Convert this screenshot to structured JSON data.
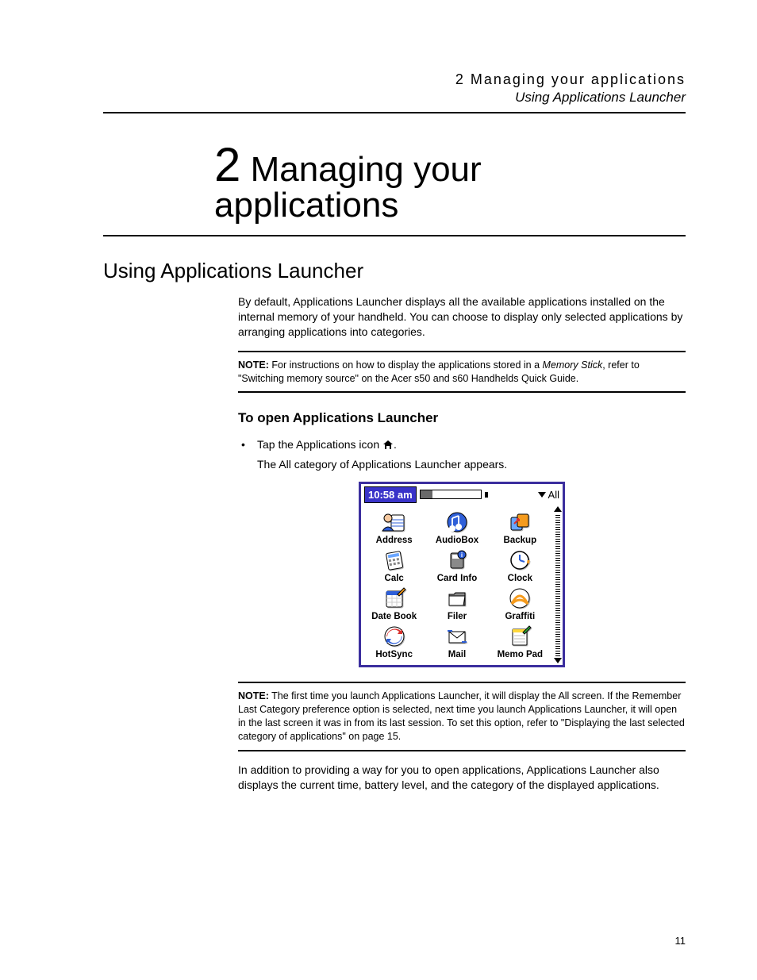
{
  "header": {
    "chapter_line": "2  Managing your applications",
    "section_line": "Using Applications Launcher"
  },
  "title": {
    "number": "2",
    "line1": " Managing your",
    "line2": "applications"
  },
  "section_heading": "Using Applications Launcher",
  "intro_para": "By default, Applications Launcher displays all the available applications installed on the internal memory of your handheld. You can choose to display only selected applications by arranging applications into categories.",
  "note1": {
    "label": "NOTE:",
    "before_italic": "   For instructions on how to display the applications stored in a ",
    "italic": "Memory Stick",
    "after_italic": ", refer to \"Switching memory source\" on the Acer s50 and s60 Handhelds Quick Guide."
  },
  "sub_heading": "To open Applications Launcher",
  "bullet": {
    "before_icon": "Tap the Applications icon ",
    "after_icon": ".",
    "follow": "The All category of Applications Launcher appears."
  },
  "launcher": {
    "time": "10:58 am",
    "battery_pct": 20,
    "category": "All",
    "apps": [
      {
        "label": "Address",
        "icon": "address"
      },
      {
        "label": "AudioBox",
        "icon": "audiobox"
      },
      {
        "label": "Backup",
        "icon": "backup"
      },
      {
        "label": "Calc",
        "icon": "calc"
      },
      {
        "label": "Card Info",
        "icon": "cardinfo"
      },
      {
        "label": "Clock",
        "icon": "clock"
      },
      {
        "label": "Date Book",
        "icon": "datebook"
      },
      {
        "label": "Filer",
        "icon": "filer"
      },
      {
        "label": "Graffiti",
        "icon": "graffiti"
      },
      {
        "label": "HotSync",
        "icon": "hotsync"
      },
      {
        "label": "Mail",
        "icon": "mail"
      },
      {
        "label": "Memo Pad",
        "icon": "memopad"
      }
    ],
    "colors": {
      "frame": "#3b2e9e",
      "time_bg": "#3933c9",
      "icon_blue": "#2e5fd8",
      "icon_blue2": "#6aa6ff",
      "icon_red": "#d8322e",
      "icon_orange": "#f59b1d",
      "icon_green": "#2fa83a",
      "icon_yellow": "#ffd83b",
      "icon_purple": "#7a3fd2",
      "icon_gray": "#8a8a8a",
      "icon_skin": "#f6c9a0"
    }
  },
  "note2": {
    "label": "NOTE:",
    "text": "   The first time you launch Applications Launcher, it will display the All screen. If the Remember Last Category preference option is selected, next time you launch Applications Launcher, it will open in the last screen it was in from its last session. To set this option, refer to \"Displaying the last selected category of applications\" on page 15."
  },
  "closing_para": "In addition to providing a way for you to open applications, Applications Launcher also displays the current time, battery level, and the category of the displayed applications.",
  "page_number": "11"
}
